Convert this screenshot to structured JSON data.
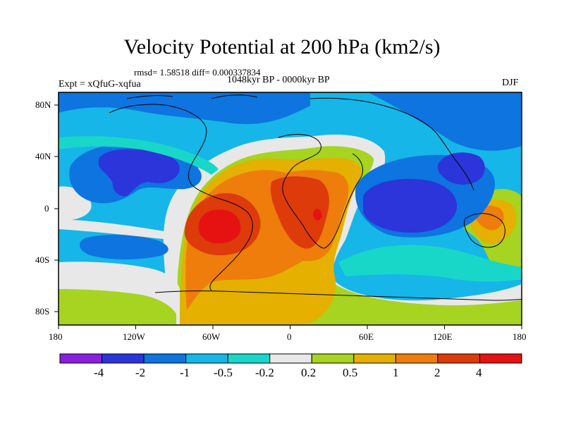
{
  "title": "Velocity Potential at 200 hPa (km2/s)",
  "stats": "rmsd= 1.58518 diff= 0.000337834",
  "experiment": "Expt = xQfuG-xqfua",
  "period": "1048kyr BP - 0000kyr BP",
  "season": "DJF",
  "lon_ticks": [
    "180",
    "120W",
    "60W",
    "0",
    "60E",
    "120E",
    "180"
  ],
  "lat_ticks": [
    "80N",
    "40N",
    "0",
    "40S",
    "80S"
  ],
  "colorbar": {
    "labels": [
      "-4",
      "-2",
      "-1",
      "-0.5",
      "-0.2",
      "0.2",
      "0.5",
      "1",
      "2",
      "4"
    ],
    "colors": [
      "#8a1fe0",
      "#2b35d9",
      "#0d74e0",
      "#16b6e8",
      "#19d7c8",
      "#e8e8e8",
      "#a6d420",
      "#e5b000",
      "#ee7d0c",
      "#dd3b0a",
      "#e61212"
    ]
  }
}
